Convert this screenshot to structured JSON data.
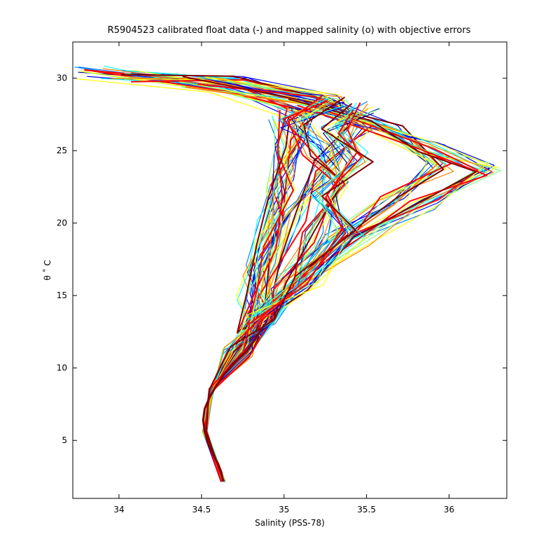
{
  "chart_data": {
    "type": "line",
    "title": "R5904523 calibrated float data (-) and mapped salinity (o) with objective errors",
    "xlabel": "Salinity (PSS-78)",
    "ylabel": "θ ˚ C",
    "xlim": [
      33.72,
      36.35
    ],
    "ylim": [
      1.0,
      32.5
    ],
    "xticks": [
      34,
      34.5,
      35,
      35.5,
      36
    ],
    "xtick_labels": [
      "34",
      "34.5",
      "35",
      "35.5",
      "36"
    ],
    "yticks": [
      5,
      10,
      15,
      20,
      25,
      30
    ],
    "ytick_labels": [
      "5",
      "10",
      "15",
      "20",
      "25",
      "30"
    ],
    "grid": false,
    "colormap": "jet",
    "colors": [
      "#00008f",
      "#0000ff",
      "#0080ff",
      "#00ffff",
      "#80ff80",
      "#ffff00",
      "#ff8000",
      "#ff0000",
      "#800000"
    ],
    "deep_branch": {
      "x": [
        34.63,
        34.62,
        34.6,
        34.57,
        34.54,
        34.52,
        34.51,
        34.52,
        34.55,
        34.59,
        34.64,
        34.7,
        34.77,
        34.83,
        34.88
      ],
      "y": [
        2.2,
        2.8,
        3.4,
        4.0,
        4.8,
        5.6,
        6.4,
        7.2,
        8.0,
        8.8,
        9.6,
        10.4,
        11.2,
        12.0,
        13.0
      ]
    },
    "series": [
      {
        "x": [
          34.63,
          34.52,
          34.56,
          34.72,
          34.87,
          34.84,
          34.92,
          34.98,
          35.06,
          35.12,
          34.62,
          33.82
        ],
        "y": [
          2.2,
          5.6,
          8.5,
          11.2,
          13.5,
          16.8,
          20.0,
          23.0,
          26.0,
          27.5,
          29.4,
          30.4
        ]
      },
      {
        "x": [
          34.63,
          34.52,
          34.56,
          34.72,
          34.87,
          34.9,
          35.05,
          35.25,
          35.45,
          35.3,
          34.7,
          34.02
        ],
        "y": [
          2.2,
          5.6,
          8.5,
          11.2,
          13.5,
          17.0,
          20.5,
          24.0,
          26.8,
          28.4,
          29.7,
          30.2
        ]
      },
      {
        "x": [
          34.63,
          34.52,
          34.56,
          34.72,
          34.87,
          35.05,
          35.3,
          35.65,
          35.95,
          35.65,
          35.2,
          34.45
        ],
        "y": [
          2.2,
          5.6,
          8.5,
          11.2,
          13.5,
          16.0,
          18.8,
          21.5,
          24.0,
          26.5,
          28.5,
          29.8
        ]
      },
      {
        "x": [
          34.63,
          34.52,
          34.56,
          34.72,
          34.87,
          35.1,
          35.45,
          35.85,
          36.23,
          35.9,
          35.5,
          35.1
        ],
        "y": [
          2.2,
          5.6,
          8.5,
          11.2,
          13.5,
          15.8,
          18.8,
          21.2,
          23.7,
          25.2,
          26.8,
          28.2
        ]
      },
      {
        "x": [
          34.63,
          34.52,
          34.56,
          34.72,
          34.87,
          34.78,
          34.8,
          34.9,
          34.98,
          35.02,
          34.98
        ],
        "y": [
          2.2,
          5.6,
          8.5,
          11.2,
          13.5,
          12.2,
          15.0,
          18.5,
          22.0,
          25.0,
          27.5
        ]
      },
      {
        "x": [
          34.63,
          34.52,
          34.56,
          34.72,
          34.87,
          35.0,
          35.18,
          35.32,
          35.2,
          35.05,
          35.3
        ],
        "y": [
          2.2,
          5.6,
          8.5,
          11.2,
          13.5,
          15.5,
          19.0,
          22.5,
          25.0,
          27.0,
          28.5
        ]
      },
      {
        "x": [
          34.63,
          34.52,
          34.56,
          34.72,
          34.87,
          35.15,
          35.4,
          35.25,
          35.45,
          35.3,
          35.5
        ],
        "y": [
          2.2,
          5.6,
          8.5,
          11.2,
          13.5,
          16.0,
          19.5,
          22.0,
          24.5,
          26.5,
          28.0
        ]
      }
    ]
  }
}
